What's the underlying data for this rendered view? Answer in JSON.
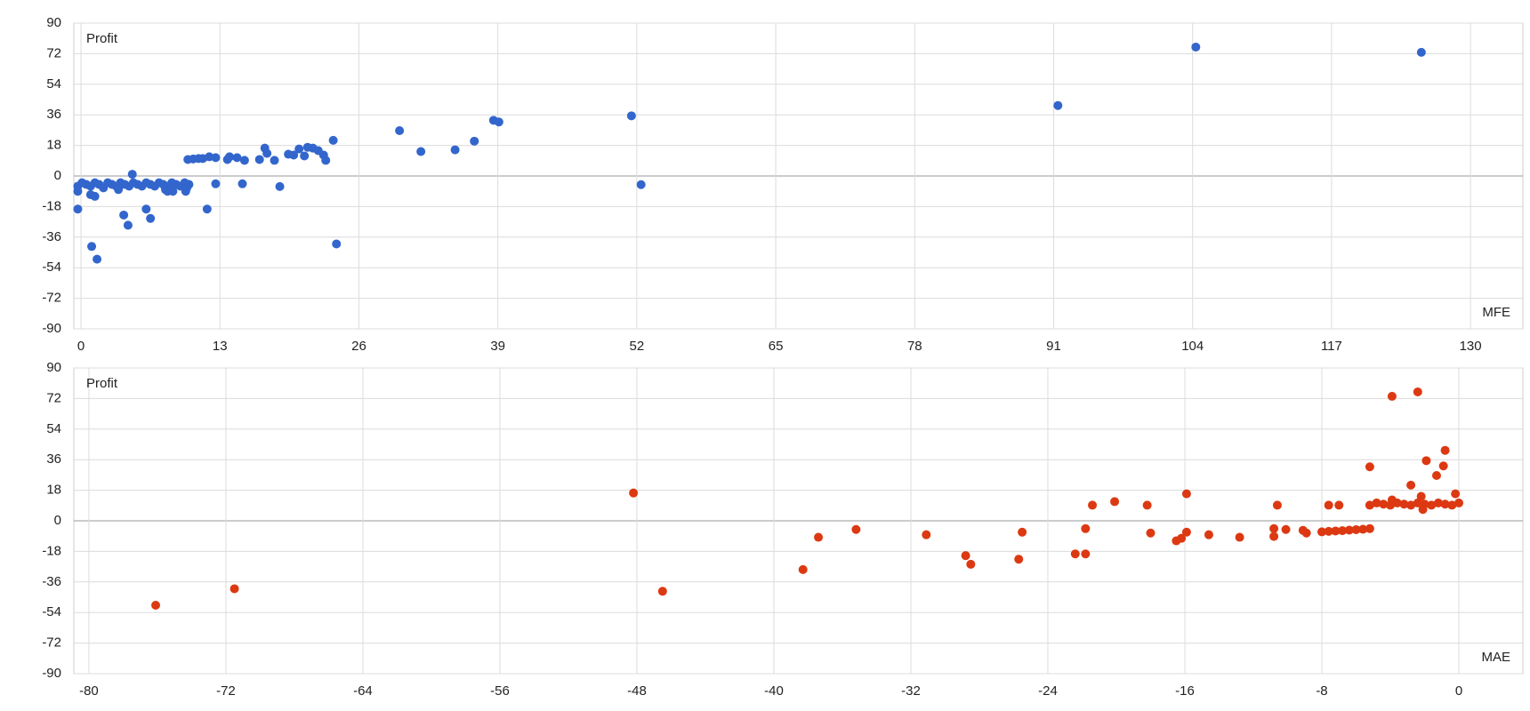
{
  "chart_data": [
    {
      "type": "scatter",
      "y_label": "Profit",
      "x_label": "MFE",
      "color": "#3366cc",
      "grid": true,
      "xlim": [
        -0.67,
        134.9
      ],
      "ylim": [
        -90,
        90
      ],
      "xticks": [
        0,
        13,
        26,
        39,
        52,
        65,
        78,
        91,
        104,
        117,
        130
      ],
      "yticks": [
        -90,
        -72,
        -54,
        -36,
        -18,
        0,
        18,
        36,
        54,
        72,
        90
      ],
      "x": [
        -0.3,
        0.1,
        0.5,
        0.9,
        1.3,
        1.7,
        2.1,
        2.5,
        2.9,
        3.3,
        3.7,
        4.1,
        4.5,
        4.9,
        5.3,
        5.7,
        6.1,
        6.5,
        6.9,
        7.3,
        7.7,
        8.1,
        8.5,
        8.9,
        9.3,
        9.7,
        10.1,
        3.5,
        7.9,
        9.9,
        -0.3,
        -0.3,
        1.0,
        1.5,
        0.9,
        1.3,
        4.0,
        4.4,
        4.8,
        6.1,
        6.5,
        8.1,
        8.6,
        9.8,
        10.0,
        10.5,
        11.0,
        11.4,
        12.0,
        12.6,
        12.6,
        11.8,
        13.7,
        13.9,
        14.6,
        15.1,
        15.3,
        16.7,
        17.2,
        17.4,
        18.1,
        18.6,
        19.4,
        19.9,
        20.4,
        20.9,
        21.2,
        21.7,
        22.2,
        22.7,
        22.9,
        23.6,
        23.9,
        29.8,
        31.8,
        35.0,
        36.8,
        38.6,
        39.1,
        51.5,
        52.4,
        91.4,
        104.3,
        125.4
      ],
      "values": [
        -6,
        -4,
        -5,
        -6,
        -4,
        -5,
        -7,
        -4,
        -5,
        -6,
        -4,
        -5,
        -6,
        -4,
        -5,
        -6,
        -4,
        -5,
        -6,
        -4,
        -5,
        -6,
        -4,
        -5,
        -6,
        -4,
        -5,
        -8,
        -8,
        -7,
        -19.5,
        -9,
        -41.5,
        -49,
        -11,
        -12,
        -23,
        -29,
        1,
        -19.5,
        -25,
        -9,
        -9,
        -9,
        9.7,
        10,
        10.3,
        10.3,
        11.3,
        10.8,
        -4.6,
        -19.5,
        9.7,
        11.3,
        10.8,
        -4.6,
        9.2,
        9.7,
        16.4,
        13.3,
        9.2,
        -6.2,
        12.8,
        12.3,
        15.9,
        11.8,
        16.9,
        16.4,
        14.9,
        12.3,
        9.2,
        21,
        -40,
        26.7,
        14.4,
        15.4,
        20.5,
        32.8,
        31.8,
        35.4,
        -5.1,
        41.5,
        75.9,
        72.8
      ]
    },
    {
      "type": "scatter",
      "y_label": "Profit",
      "x_label": "MAE",
      "color": "#dc3912",
      "grid": true,
      "xlim": [
        -80.88,
        3.74
      ],
      "ylim": [
        -90,
        90
      ],
      "xticks": [
        -80,
        -72,
        -64,
        -56,
        -48,
        -40,
        -32,
        -24,
        -16,
        -8,
        0
      ],
      "yticks": [
        -90,
        -72,
        -54,
        -36,
        -18,
        0,
        18,
        36,
        54,
        72,
        90
      ],
      "x": [
        -76.1,
        -71.5,
        -48.2,
        -46.5,
        -38.3,
        -37.4,
        -35.2,
        -31.1,
        -28.8,
        -28.5,
        -25.7,
        -25.5,
        -22.4,
        -21.8,
        -21.8,
        -21.4,
        -20.1,
        -18.2,
        -18.0,
        -16.5,
        -16.2,
        -15.9,
        -15.9,
        -14.6,
        -12.8,
        -10.8,
        -10.8,
        -10.6,
        -10.1,
        -9.1,
        -8.9,
        -8.0,
        -7.6,
        -7.2,
        -6.8,
        -6.4,
        -6.0,
        -5.6,
        -5.2,
        -7.6,
        -7.0,
        -5.2,
        -5.2,
        -4.8,
        -4.4,
        -4.0,
        -3.6,
        -3.2,
        -2.8,
        -2.4,
        -2.0,
        -1.6,
        -1.2,
        -0.8,
        -0.4,
        0.0,
        -3.9,
        -2.4,
        -2.1,
        -1.9,
        -1.3,
        -0.8,
        -0.9,
        -0.2,
        -2.8,
        -3.9,
        -2.2
      ],
      "values": [
        -49.7,
        -40,
        16.4,
        -41.5,
        -28.7,
        -9.7,
        -5.1,
        -8.2,
        -20.5,
        -25.6,
        -22.6,
        -6.7,
        -19.5,
        -4.6,
        -19.5,
        9.2,
        11.3,
        9.2,
        -7.2,
        -11.8,
        -10.3,
        -6.7,
        15.9,
        -8.2,
        -9.7,
        -9.2,
        -4.6,
        9.2,
        -5.1,
        -5.6,
        -7.2,
        -6.5,
        -6.2,
        -6,
        -5.8,
        -5.5,
        -5.2,
        -5,
        -4.6,
        9.2,
        9.2,
        31.8,
        9.2,
        10.5,
        9.8,
        9.2,
        10.5,
        9.8,
        9.2,
        10.5,
        9.8,
        9.2,
        10.5,
        9.8,
        9.2,
        10.5,
        73.3,
        75.9,
        6.7,
        35.4,
        26.7,
        41.5,
        32.3,
        15.9,
        21,
        12.3,
        14.4
      ]
    }
  ]
}
